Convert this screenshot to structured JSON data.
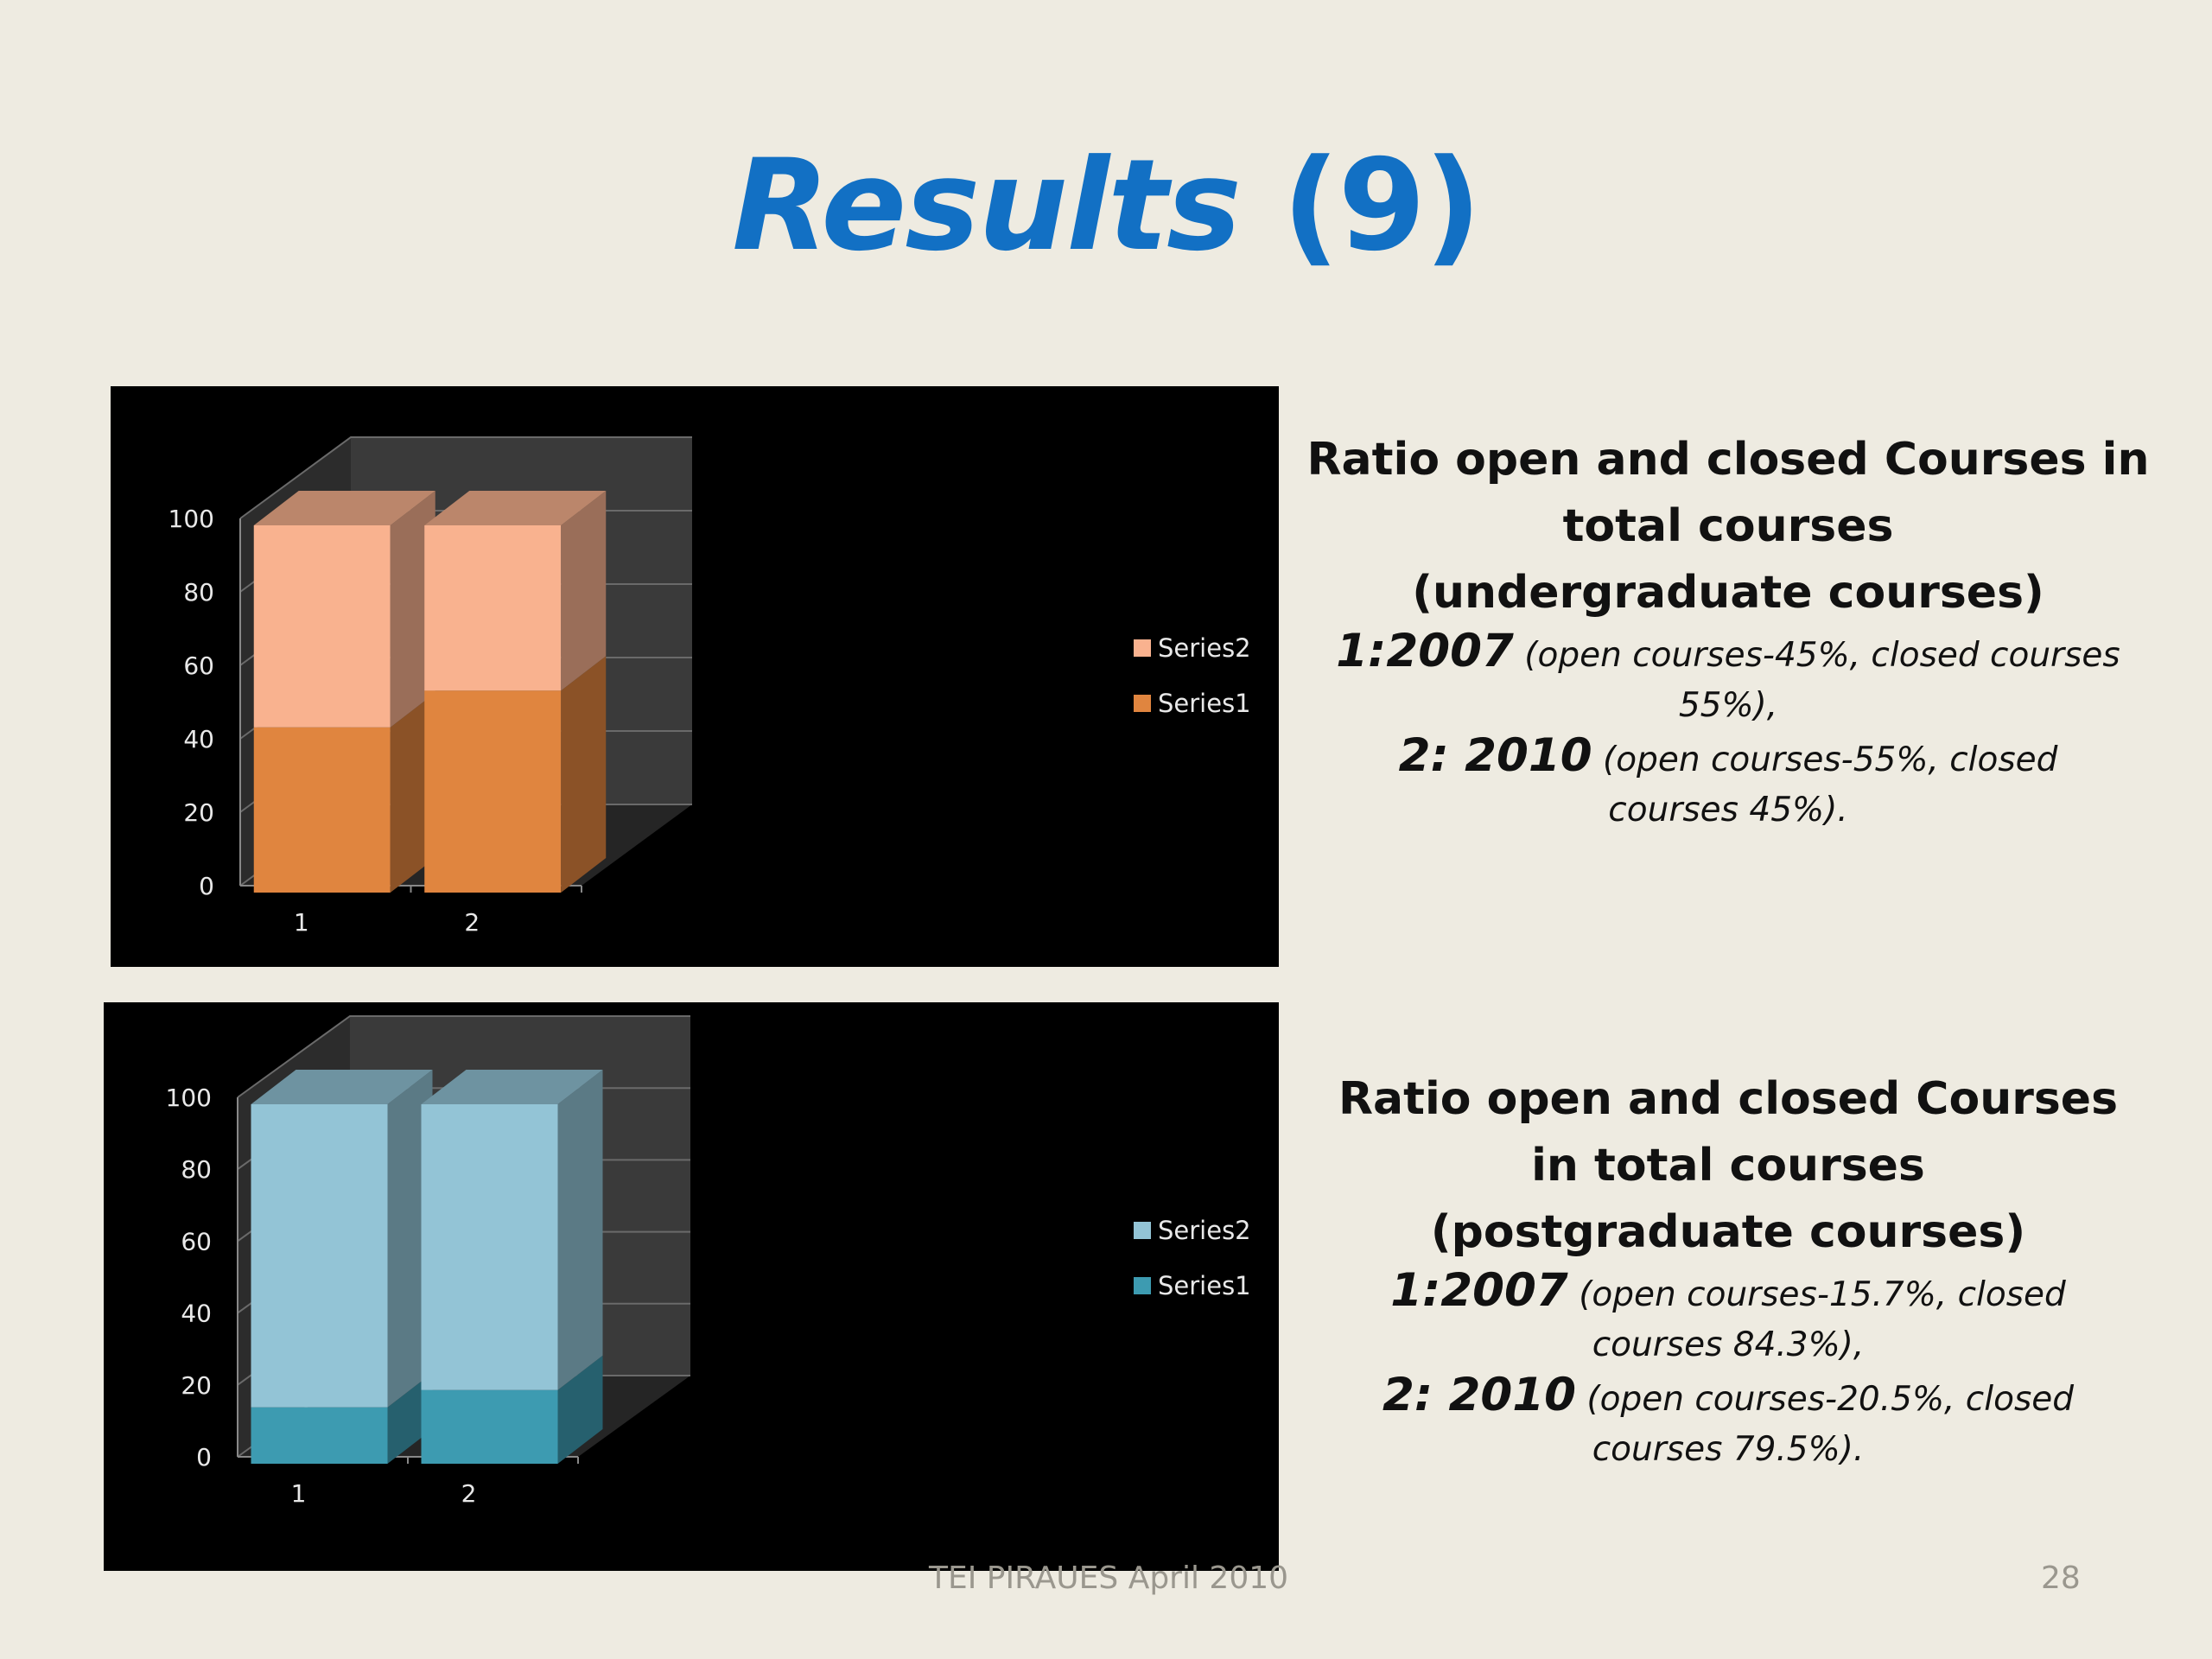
{
  "slide": {
    "title_italic": "Results",
    "title_rest": "(9)",
    "footer_text": "TEI PIRAUES  April 2010",
    "page_number": "28"
  },
  "descriptions": [
    {
      "heading_lines": [
        "Ratio open and closed Courses in",
        "total courses",
        "(undergraduate courses)"
      ],
      "items": [
        {
          "year": "1:2007",
          "detail": " (open courses-45%, closed courses 55%),"
        },
        {
          "year": "2: 2010",
          "detail": " (open courses-55%, closed courses 45%)."
        }
      ]
    },
    {
      "heading_lines": [
        "Ratio open and closed Courses",
        "in total courses",
        "(postgraduate courses)"
      ],
      "items": [
        {
          "year": "1:2007",
          "detail": " (open courses-15.7%, closed courses 84.3%),"
        },
        {
          "year": "2: 2010",
          "detail": " (open courses-20.5%, closed courses 79.5%)."
        }
      ]
    }
  ],
  "chart_data": [
    {
      "type": "bar",
      "stacked": true,
      "three_d": true,
      "categories": [
        "1",
        "2"
      ],
      "series": [
        {
          "name": "Series1",
          "values": [
            45,
            55
          ],
          "color": "#e0853f"
        },
        {
          "name": "Series2",
          "values": [
            55,
            45
          ],
          "color": "#f9b28f"
        }
      ],
      "ylim": [
        0,
        100
      ],
      "yticks": [
        "0",
        "20",
        "40",
        "60",
        "80",
        "100"
      ],
      "legend": "right",
      "background": "#000000"
    },
    {
      "type": "bar",
      "stacked": true,
      "three_d": true,
      "categories": [
        "1",
        "2"
      ],
      "series": [
        {
          "name": "Series1",
          "values": [
            15.7,
            20.5
          ],
          "color": "#3d9bb1"
        },
        {
          "name": "Series2",
          "values": [
            84.3,
            79.5
          ],
          "color": "#93c4d6"
        }
      ],
      "ylim": [
        0,
        100
      ],
      "yticks": [
        "0",
        "20",
        "40",
        "60",
        "80",
        "100"
      ],
      "legend": "right",
      "background": "#000000"
    }
  ]
}
